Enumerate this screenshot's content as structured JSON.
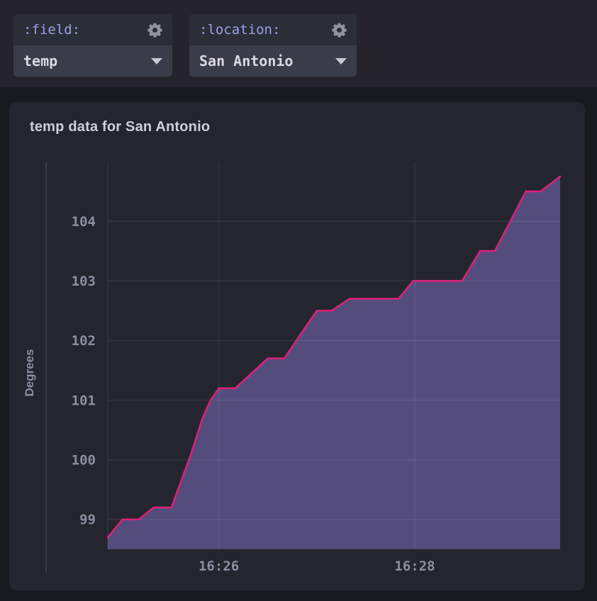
{
  "header": {
    "variables": [
      {
        "label": ":field:",
        "value": "temp"
      },
      {
        "label": ":location:",
        "value": "San Antonio"
      }
    ]
  },
  "panel": {
    "title": "temp data for San Antonio"
  },
  "chart_data": {
    "type": "area",
    "title": "temp data for San Antonio",
    "xlabel": "",
    "ylabel": "Degrees",
    "grid": true,
    "legend": "none",
    "ylim": [
      98.5,
      105.0
    ],
    "y_ticks": [
      99,
      100,
      101,
      102,
      103,
      104
    ],
    "x_domain_seconds": [
      0,
      277
    ],
    "x_ticks": [
      {
        "t": 68,
        "label": "16:26"
      },
      {
        "t": 188,
        "label": "16:28"
      }
    ],
    "series": [
      {
        "name": "temp",
        "line_color": "#d92177",
        "fill_color": "#544c7d",
        "points_t_seconds_value": [
          [
            0,
            98.7
          ],
          [
            9,
            99.0
          ],
          [
            19,
            99.0
          ],
          [
            28,
            99.2
          ],
          [
            39,
            99.2
          ],
          [
            51,
            100.1
          ],
          [
            58,
            100.7
          ],
          [
            63,
            101.0
          ],
          [
            68,
            101.2
          ],
          [
            78,
            101.2
          ],
          [
            98,
            101.7
          ],
          [
            108,
            101.7
          ],
          [
            128,
            102.5
          ],
          [
            137,
            102.5
          ],
          [
            148,
            102.7
          ],
          [
            178,
            102.7
          ],
          [
            187,
            103.0
          ],
          [
            217,
            103.0
          ],
          [
            228,
            103.5
          ],
          [
            237,
            103.5
          ],
          [
            256,
            104.5
          ],
          [
            265,
            104.5
          ],
          [
            277,
            104.75
          ]
        ]
      }
    ],
    "colors": {
      "grid": "rgba(255,255,255,0.07)",
      "axis_line": "rgba(255,255,255,0.10)",
      "tick_text": "#8a8fa0",
      "axis_label_text": "#8a8fa0"
    }
  },
  "colors": {
    "page_bg": "#191a20",
    "topbar_bg": "#25242d",
    "panel_bg": "#24252e",
    "widget_header_bg": "#2b2d37",
    "widget_value_bg": "#3a3d49",
    "variable_label": "#9ba0e8",
    "variable_value": "#d7dae2",
    "title_text": "#ccd0da",
    "icon": "#8f939e"
  }
}
